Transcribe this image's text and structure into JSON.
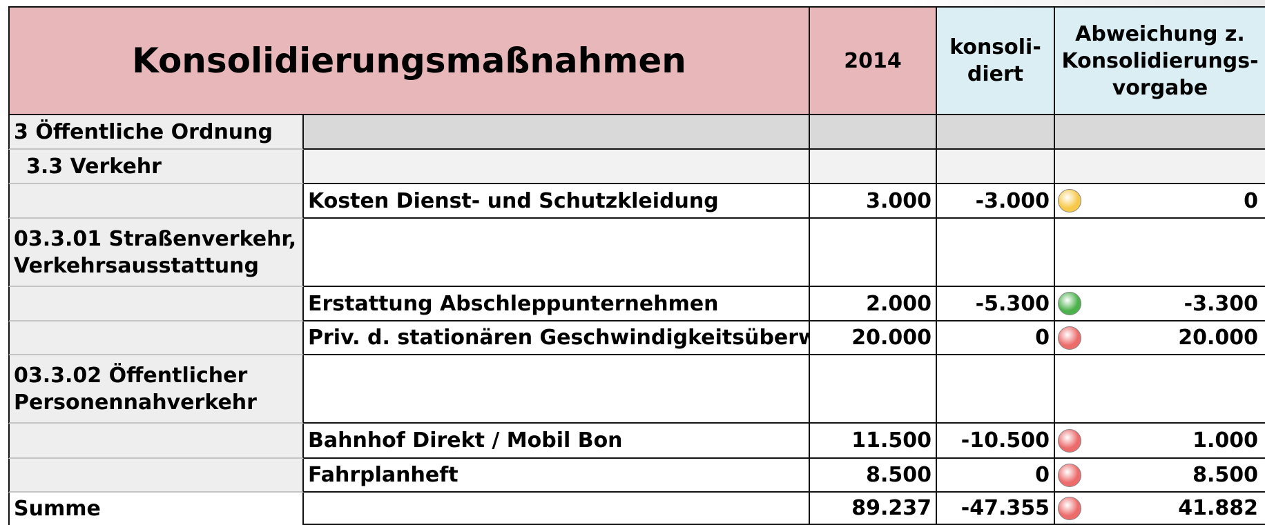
{
  "header": {
    "title": "Konsolidierungsmaßnahmen",
    "year": "2014",
    "consolidated": [
      "konsoli-",
      "diert"
    ],
    "deviation": [
      "Abweichung z.",
      "Konsolidierungs-",
      "vorgabe"
    ]
  },
  "table": {
    "rows": [
      {
        "section": "3 Öffentliche Ordnung"
      },
      {
        "subsection": "3.3 Verkehr"
      },
      {
        "item": "Kosten Dienst- und Schutzkleidung",
        "year": "3.000",
        "consolidated": "-3.000",
        "indicator": "#f7c94a",
        "deviation": "0"
      },
      {
        "section": "03.3.01 Straßenverkehr, Verkehrsausstattung"
      },
      {
        "item": "Erstattung Abschleppunternehmen",
        "year": "2.000",
        "consolidated": "-5.300",
        "indicator": "#4cb24c",
        "deviation": "-3.300"
      },
      {
        "item": "Priv. d. stationären Geschwindigkeitsüberw",
        "year": "20.000",
        "consolidated": "0",
        "indicator": "#ec6b6b",
        "deviation": "20.000"
      },
      {
        "section": "03.3.02 Öffentlicher Personennahverkehr"
      },
      {
        "item": "Bahnhof Direkt / Mobil Bon",
        "year": "11.500",
        "consolidated": "-10.500",
        "indicator": "#ec6b6b",
        "deviation": "1.000"
      },
      {
        "item": "Fahrplanheft",
        "year": "8.500",
        "consolidated": "0",
        "indicator": "#ec6b6b",
        "deviation": "8.500"
      },
      {
        "section": "Summe",
        "year": "89.237",
        "consolidated": "-47.355",
        "indicator": "#ec6b6b",
        "deviation": "41.882"
      }
    ]
  }
}
